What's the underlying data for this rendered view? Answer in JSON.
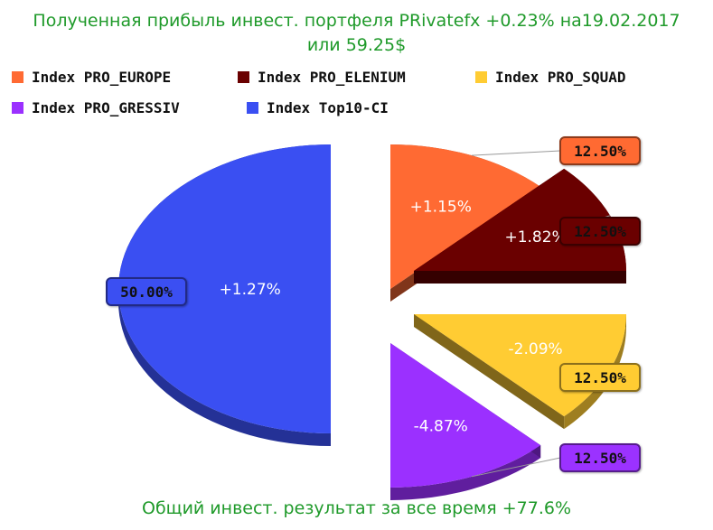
{
  "title_line1": "Полученная прибыль инвест. портфеля PRivatefx +0.23% на19.02.2017",
  "title_line2": "или 59.25$",
  "footer": "Общий инвест. результат за все время +77.6%",
  "chart_data": {
    "type": "pie",
    "series": [
      {
        "name": "Index PRO_EUROPE",
        "share": 12.5,
        "share_label": "12.50%",
        "profit_label": "+1.15%",
        "color": "#ff6a33"
      },
      {
        "name": "Index PRO_ELENIUM",
        "share": 12.5,
        "share_label": "12.50%",
        "profit_label": "+1.82%",
        "color": "#6a0000"
      },
      {
        "name": "Index PRO_SQUAD",
        "share": 12.5,
        "share_label": "12.50%",
        "profit_label": "-2.09%",
        "color": "#ffcc33"
      },
      {
        "name": "Index PRO_GRESSIV",
        "share": 12.5,
        "share_label": "12.50%",
        "profit_label": "-4.87%",
        "color": "#9b30ff"
      },
      {
        "name": "Index Top10-CI",
        "share": 50.0,
        "share_label": "50.00%",
        "profit_label": "+1.27%",
        "color": "#3a4ff2"
      }
    ],
    "legend_position": "top",
    "style": "3d-exploded"
  }
}
